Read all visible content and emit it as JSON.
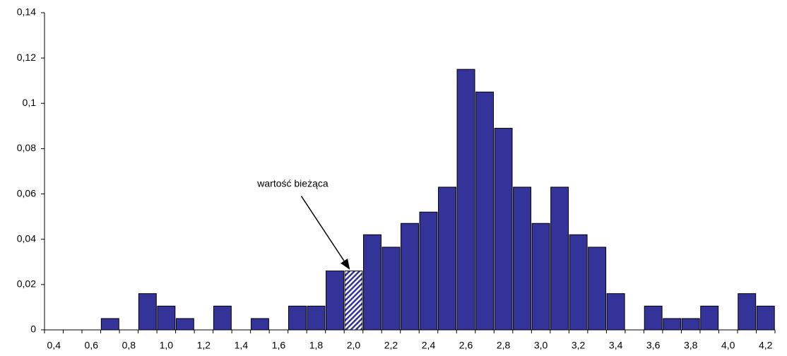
{
  "chart_data": {
    "type": "bar",
    "categories": [
      "0,4",
      null,
      "0,6",
      null,
      "0,8",
      null,
      "1,0",
      null,
      "1,2",
      null,
      "1,4",
      null,
      "1,6",
      null,
      "1,8",
      null,
      "2,0",
      null,
      "2,2",
      null,
      "2,4",
      null,
      "2,6",
      null,
      "2,8",
      null,
      "3,0",
      null,
      "3,2",
      null,
      "3,4",
      null,
      "3,6",
      null,
      "3,8",
      null,
      "4,0",
      null,
      "4,2"
    ],
    "values": [
      0,
      0,
      0,
      0.005,
      0,
      0.016,
      0.0105,
      0.005,
      0,
      0.0105,
      0,
      0.005,
      0,
      0.0105,
      0.0105,
      0.026,
      0.026,
      0.042,
      0.0365,
      0.047,
      0.052,
      0.063,
      0.115,
      0.105,
      0.089,
      0.063,
      0.047,
      0.063,
      0.042,
      0.0365,
      0.016,
      0,
      0.0105,
      0.005,
      0.005,
      0.0105,
      0,
      0.016,
      0.0105
    ],
    "color": "#333399",
    "highlight_index": 16,
    "annotation": "wartość bieżąca",
    "ylim": [
      0,
      0.14
    ],
    "yticks": [
      {
        "value": 0,
        "label": "0"
      },
      {
        "value": 0.02,
        "label": "0,02"
      },
      {
        "value": 0.04,
        "label": "0,04"
      },
      {
        "value": 0.06,
        "label": "0,06"
      },
      {
        "value": 0.08,
        "label": "0,08"
      },
      {
        "value": 0.1,
        "label": "0,1"
      },
      {
        "value": 0.12,
        "label": "0,12"
      },
      {
        "value": 0.14,
        "label": "0,14"
      }
    ],
    "grid": false
  }
}
